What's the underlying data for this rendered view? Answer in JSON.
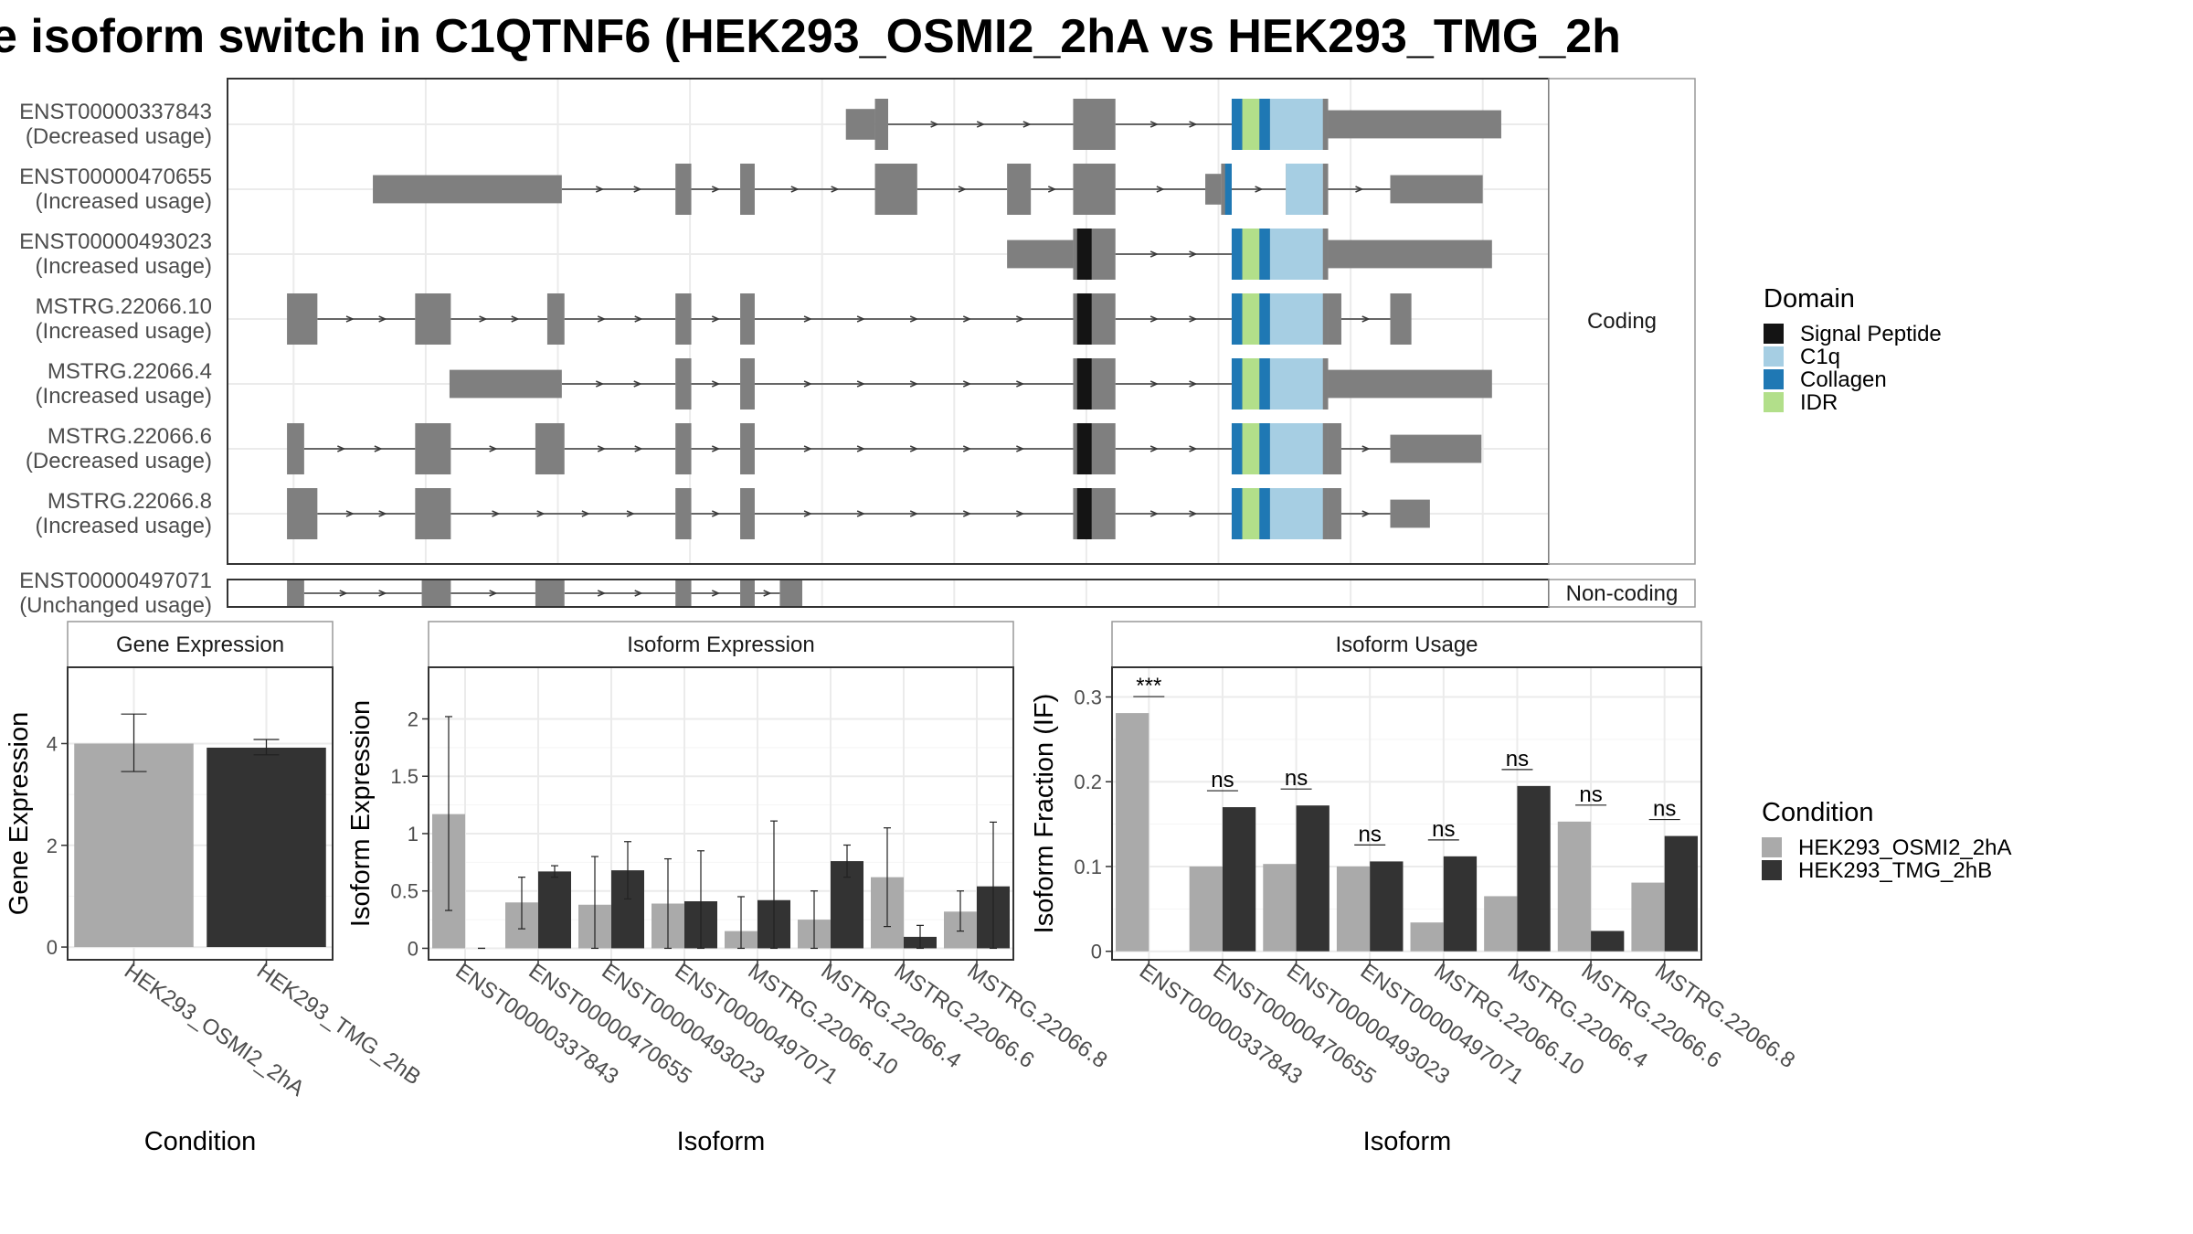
{
  "title": "e isoform switch in C1QTNF6 (HEK293_OSMI2_2hA vs HEK293_TMG_2h",
  "colors": {
    "exon": "#7f7f7f",
    "intron": "#3a3a3a",
    "signal_peptide": "#141414",
    "c1q": "#a6cee3",
    "collagen": "#1f78b4",
    "idr": "#b2df8a",
    "cond_a": "#aaaaaa",
    "cond_b": "#333333",
    "grid": "#ebebeb",
    "panel_border": "#333333",
    "strip_border": "#999999"
  },
  "legends": {
    "domain": {
      "title": "Domain",
      "items": [
        {
          "label": "Signal Peptide",
          "color": "#141414"
        },
        {
          "label": "C1q",
          "color": "#a6cee3"
        },
        {
          "label": "Collagen",
          "color": "#1f78b4"
        },
        {
          "label": "IDR",
          "color": "#b2df8a"
        }
      ]
    },
    "condition": {
      "title": "Condition",
      "items": [
        {
          "label": "HEK293_OSMI2_2hA",
          "color": "#aaaaaa"
        },
        {
          "label": "HEK293_TMG_2hB",
          "color": "#333333"
        }
      ]
    }
  },
  "chart_data": [
    {
      "type": "gene_structure",
      "strips": {
        "coding": "Coding",
        "noncoding": "Non-coding"
      },
      "x_range": [
        0,
        100
      ],
      "transcripts": [
        {
          "id": "ENST00000337843",
          "usage": "(Decreased usage)",
          "group": "coding",
          "exons": [
            [
              46.8,
              49.0,
              0.6
            ],
            [
              49.0,
              50.0,
              1.0
            ],
            [
              64.0,
              67.2,
              1.0
            ],
            [
              76.0,
              83.3,
              1.0
            ],
            [
              83.3,
              96.4,
              0.55
            ]
          ],
          "domains": [
            [
              "collagen",
              76.0,
              76.8
            ],
            [
              "idr",
              76.8,
              78.1
            ],
            [
              "collagen",
              78.1,
              78.9
            ],
            [
              "c1q",
              78.9,
              82.9
            ]
          ]
        },
        {
          "id": "ENST00000470655",
          "usage": "(Increased usage)",
          "group": "coding",
          "exons": [
            [
              11.0,
              25.3,
              0.55
            ],
            [
              33.9,
              35.1,
              1.0
            ],
            [
              38.8,
              39.9,
              1.0
            ],
            [
              49.0,
              52.2,
              1.0
            ],
            [
              59.0,
              60.8,
              1.0
            ],
            [
              64.0,
              67.2,
              1.0
            ],
            [
              74.0,
              75.2,
              0.6
            ],
            [
              75.2,
              76.0,
              1.0
            ],
            [
              80.1,
              82.9,
              1.0
            ],
            [
              82.9,
              83.3,
              1.0
            ],
            [
              88.0,
              95.0,
              0.55
            ]
          ],
          "domains": [
            [
              "collagen",
              75.5,
              76.0
            ],
            [
              "c1q",
              80.1,
              82.9
            ]
          ]
        },
        {
          "id": "ENST00000493023",
          "usage": "(Increased usage)",
          "group": "coding",
          "exons": [
            [
              59.0,
              64.0,
              0.55
            ],
            [
              64.0,
              67.2,
              1.0
            ],
            [
              76.0,
              83.3,
              1.0
            ],
            [
              83.3,
              95.7,
              0.55
            ]
          ],
          "domains": [
            [
              "signal_peptide",
              64.3,
              65.4
            ],
            [
              "collagen",
              76.0,
              76.8
            ],
            [
              "idr",
              76.8,
              78.1
            ],
            [
              "collagen",
              78.1,
              78.9
            ],
            [
              "c1q",
              78.9,
              82.9
            ]
          ]
        },
        {
          "id": "MSTRG.22066.10",
          "usage": "(Increased usage)",
          "group": "coding",
          "exons": [
            [
              4.5,
              6.8,
              1.0
            ],
            [
              14.2,
              16.9,
              1.0
            ],
            [
              24.2,
              25.5,
              1.0
            ],
            [
              33.9,
              35.1,
              1.0
            ],
            [
              38.8,
              39.9,
              1.0
            ],
            [
              64.0,
              67.2,
              1.0
            ],
            [
              76.0,
              83.3,
              1.0
            ],
            [
              83.3,
              84.3,
              1.0
            ],
            [
              88.0,
              89.6,
              1.0
            ]
          ],
          "domains": [
            [
              "signal_peptide",
              64.3,
              65.4
            ],
            [
              "collagen",
              76.0,
              76.8
            ],
            [
              "idr",
              76.8,
              78.1
            ],
            [
              "collagen",
              78.1,
              78.9
            ],
            [
              "c1q",
              78.9,
              82.9
            ]
          ]
        },
        {
          "id": "MSTRG.22066.4",
          "usage": "(Increased usage)",
          "group": "coding",
          "exons": [
            [
              16.8,
              25.3,
              0.55
            ],
            [
              33.9,
              35.1,
              1.0
            ],
            [
              38.8,
              39.9,
              1.0
            ],
            [
              64.0,
              67.2,
              1.0
            ],
            [
              76.0,
              83.3,
              1.0
            ],
            [
              83.3,
              95.7,
              0.55
            ]
          ],
          "domains": [
            [
              "signal_peptide",
              64.3,
              65.4
            ],
            [
              "collagen",
              76.0,
              76.8
            ],
            [
              "idr",
              76.8,
              78.1
            ],
            [
              "collagen",
              78.1,
              78.9
            ],
            [
              "c1q",
              78.9,
              82.9
            ]
          ]
        },
        {
          "id": "MSTRG.22066.6",
          "usage": "(Decreased usage)",
          "group": "coding",
          "exons": [
            [
              4.5,
              5.8,
              1.0
            ],
            [
              14.2,
              16.9,
              1.0
            ],
            [
              23.3,
              25.5,
              1.0
            ],
            [
              33.9,
              35.1,
              1.0
            ],
            [
              38.8,
              39.9,
              1.0
            ],
            [
              64.0,
              67.2,
              1.0
            ],
            [
              76.0,
              83.3,
              1.0
            ],
            [
              83.3,
              84.3,
              1.0
            ],
            [
              88.0,
              94.9,
              0.55
            ]
          ],
          "domains": [
            [
              "signal_peptide",
              64.3,
              65.4
            ],
            [
              "collagen",
              76.0,
              76.8
            ],
            [
              "idr",
              76.8,
              78.1
            ],
            [
              "collagen",
              78.1,
              78.9
            ],
            [
              "c1q",
              78.9,
              82.9
            ]
          ]
        },
        {
          "id": "MSTRG.22066.8",
          "usage": "(Increased usage)",
          "group": "coding",
          "exons": [
            [
              4.5,
              6.8,
              1.0
            ],
            [
              14.2,
              16.9,
              1.0
            ],
            [
              33.9,
              35.1,
              1.0
            ],
            [
              38.8,
              39.9,
              1.0
            ],
            [
              64.0,
              67.2,
              1.0
            ],
            [
              76.0,
              83.3,
              1.0
            ],
            [
              83.3,
              84.3,
              1.0
            ],
            [
              88.0,
              91.0,
              0.55
            ]
          ],
          "domains": [
            [
              "signal_peptide",
              64.3,
              65.4
            ],
            [
              "collagen",
              76.0,
              76.8
            ],
            [
              "idr",
              76.8,
              78.1
            ],
            [
              "collagen",
              78.1,
              78.9
            ],
            [
              "c1q",
              78.9,
              82.9
            ]
          ]
        },
        {
          "id": "ENST00000497071",
          "usage": "(Unchanged usage)",
          "group": "noncoding",
          "exons": [
            [
              4.5,
              5.8,
              1.0
            ],
            [
              14.7,
              16.9,
              1.0
            ],
            [
              23.3,
              25.5,
              1.0
            ],
            [
              33.9,
              35.1,
              1.0
            ],
            [
              38.8,
              39.9,
              1.0
            ],
            [
              41.8,
              43.5,
              1.0
            ]
          ],
          "domains": []
        }
      ]
    },
    {
      "type": "bar",
      "title": "Gene Expression",
      "xlabel": "Condition",
      "ylabel": "Gene Expression",
      "ylim": [
        -0.25,
        5.5
      ],
      "yticks": [
        0,
        2,
        4
      ],
      "categories": [
        "HEK293_OSMI2_2hA",
        "HEK293_TMG_2hB"
      ],
      "values": [
        4.0,
        3.92
      ],
      "errors": [
        [
          3.45,
          4.58
        ],
        [
          3.78,
          4.08
        ]
      ]
    },
    {
      "type": "bar",
      "title": "Isoform Expression",
      "xlabel": "Isoform",
      "ylabel": "Isoform Expression",
      "ylim": [
        -0.1,
        2.45
      ],
      "yticks": [
        0.0,
        0.5,
        1.0,
        1.5,
        2.0
      ],
      "categories": [
        "ENST00000337843",
        "ENST00000470655",
        "ENST00000493023",
        "ENST00000497071",
        "MSTRG.22066.10",
        "MSTRG.22066.4",
        "MSTRG.22066.6",
        "MSTRG.22066.8"
      ],
      "series": [
        {
          "name": "HEK293_OSMI2_2hA",
          "values": [
            1.17,
            0.4,
            0.38,
            0.39,
            0.15,
            0.25,
            0.62,
            0.32
          ]
        },
        {
          "name": "HEK293_TMG_2hB",
          "values": [
            0.0,
            0.67,
            0.68,
            0.41,
            0.42,
            0.76,
            0.1,
            0.54
          ]
        }
      ],
      "errors": [
        [
          [
            0.33,
            2.02
          ],
          [
            0.17,
            0.62
          ],
          [
            0.0,
            0.8
          ],
          [
            0.0,
            0.78
          ],
          [
            0.0,
            0.45
          ],
          [
            0.0,
            0.5
          ],
          [
            0.19,
            1.05
          ],
          [
            0.15,
            0.5
          ]
        ],
        [
          [
            0.0,
            0.0
          ],
          [
            0.62,
            0.72
          ],
          [
            0.43,
            0.93
          ],
          [
            0.0,
            0.85
          ],
          [
            0.0,
            1.11
          ],
          [
            0.62,
            0.9
          ],
          [
            0.0,
            0.2
          ],
          [
            0.0,
            1.1
          ]
        ]
      ]
    },
    {
      "type": "bar",
      "title": "Isoform Usage",
      "xlabel": "Isoform",
      "ylabel": "Isoform Fraction (IF)",
      "ylim": [
        -0.01,
        0.335
      ],
      "yticks": [
        0.0,
        0.1,
        0.2,
        0.3
      ],
      "categories": [
        "ENST00000337843",
        "ENST00000470655",
        "ENST00000493023",
        "ENST00000497071",
        "MSTRG.22066.10",
        "MSTRG.22066.4",
        "MSTRG.22066.6",
        "MSTRG.22066.8"
      ],
      "series": [
        {
          "name": "HEK293_OSMI2_2hA",
          "values": [
            0.281,
            0.1,
            0.103,
            0.1,
            0.034,
            0.065,
            0.153,
            0.081
          ]
        },
        {
          "name": "HEK293_TMG_2hB",
          "values": [
            0.0,
            0.17,
            0.172,
            0.106,
            0.112,
            0.195,
            0.024,
            0.136
          ]
        }
      ],
      "significance": [
        "***",
        "ns",
        "ns",
        "ns",
        "ns",
        "ns",
        "ns",
        "ns"
      ]
    }
  ]
}
